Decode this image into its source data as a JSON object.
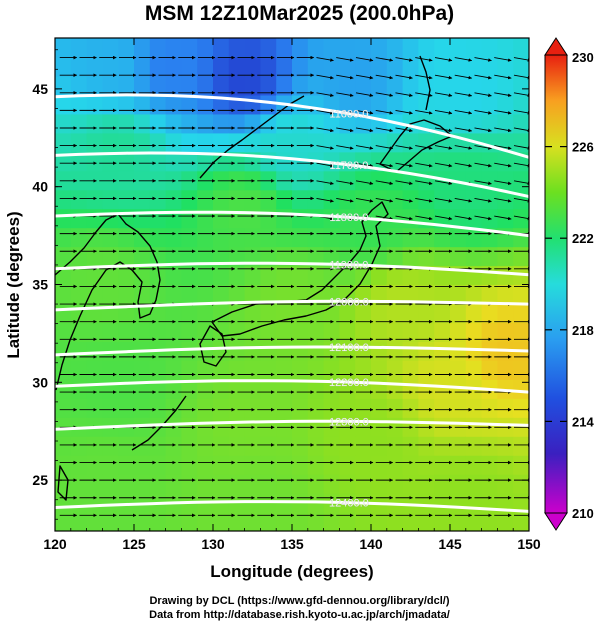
{
  "title": "MSM 12Z10Mar2025 (200.0hPa)",
  "xlabel": "Longitude (degrees)",
  "ylabel": "Latitude  (degrees)",
  "credits": [
    "Drawing by DCL (https://www.gfd-dennou.org/library/dcl/)",
    "Data from http://database.rish.kyoto-u.ac.jp/arch/jmadata/"
  ],
  "chart_data": {
    "type": "heatmap",
    "title": "MSM 12Z10Mar2025 (200.0hPa)",
    "xlabel": "Longitude (degrees)",
    "ylabel": "Latitude  (degrees)",
    "xlim": [
      120,
      150
    ],
    "ylim": [
      22.4,
      47.6
    ],
    "x_ticks": [
      120,
      125,
      130,
      135,
      140,
      145,
      150
    ],
    "y_ticks": [
      25,
      30,
      35,
      40,
      45
    ],
    "colorbar": {
      "range": [
        210,
        230
      ],
      "ticks": [
        210,
        214,
        218,
        222,
        226,
        230
      ],
      "extend": "both",
      "colormap": [
        "#cc00cc",
        "#2020c0",
        "#2a7ff0",
        "#26d6ea",
        "#20e060",
        "#8ee020",
        "#e8e020",
        "#f89a20",
        "#e82010"
      ]
    },
    "contours": [
      {
        "label": "11600.0",
        "lat_west": 44.6,
        "lat_east": 41.5
      },
      {
        "label": "11700.0",
        "lat_west": 41.6,
        "lat_east": 39.5
      },
      {
        "label": "11800.0",
        "lat_west": 38.5,
        "lat_east": 37.5
      },
      {
        "label": "11900.0",
        "lat_west": 35.8,
        "lat_east": 35.5
      },
      {
        "label": "12000.0",
        "lat_west": 33.7,
        "lat_east": 34.0
      },
      {
        "label": "12100.0",
        "lat_west": 31.4,
        "lat_east": 31.6
      },
      {
        "label": "12200.0",
        "lat_west": 29.8,
        "lat_east": 29.5
      },
      {
        "label": "12300.0",
        "lat_west": 27.6,
        "lat_east": 27.8
      },
      {
        "label": "12400.0",
        "lat_west": 23.6,
        "lat_east": 23.4
      }
    ],
    "temperature_field": [
      {
        "lon": 132,
        "lat": 45.5,
        "value": 213.5
      },
      {
        "lon": 127,
        "lat": 46,
        "value": 215
      },
      {
        "lon": 139,
        "lat": 45.5,
        "value": 216
      },
      {
        "lon": 124,
        "lat": 46,
        "value": 216.5
      },
      {
        "lon": 146,
        "lat": 45,
        "value": 217.5
      },
      {
        "lon": 135,
        "lat": 42,
        "value": 218
      },
      {
        "lon": 124,
        "lat": 42,
        "value": 219
      },
      {
        "lon": 132,
        "lat": 39,
        "value": 221
      },
      {
        "lon": 140,
        "lat": 38,
        "value": 220.5
      },
      {
        "lon": 146,
        "lat": 40,
        "value": 219.5
      },
      {
        "lon": 123,
        "lat": 35,
        "value": 221.5
      },
      {
        "lon": 135,
        "lat": 34,
        "value": 222
      },
      {
        "lon": 142,
        "lat": 34,
        "value": 223.5
      },
      {
        "lon": 148.5,
        "lat": 31.5,
        "value": 226
      },
      {
        "lon": 145,
        "lat": 30,
        "value": 224.5
      },
      {
        "lon": 124,
        "lat": 30,
        "value": 221
      },
      {
        "lon": 132,
        "lat": 28,
        "value": 222
      },
      {
        "lon": 140,
        "lat": 27,
        "value": 222.5
      },
      {
        "lon": 123,
        "lat": 25,
        "value": 221.5
      },
      {
        "lon": 133,
        "lat": 24,
        "value": 221.8
      },
      {
        "lon": 146,
        "lat": 24,
        "value": 222.5
      }
    ],
    "wind": "westerly (eastward) flow across the domain, slight southward curvature over northern Japan"
  }
}
